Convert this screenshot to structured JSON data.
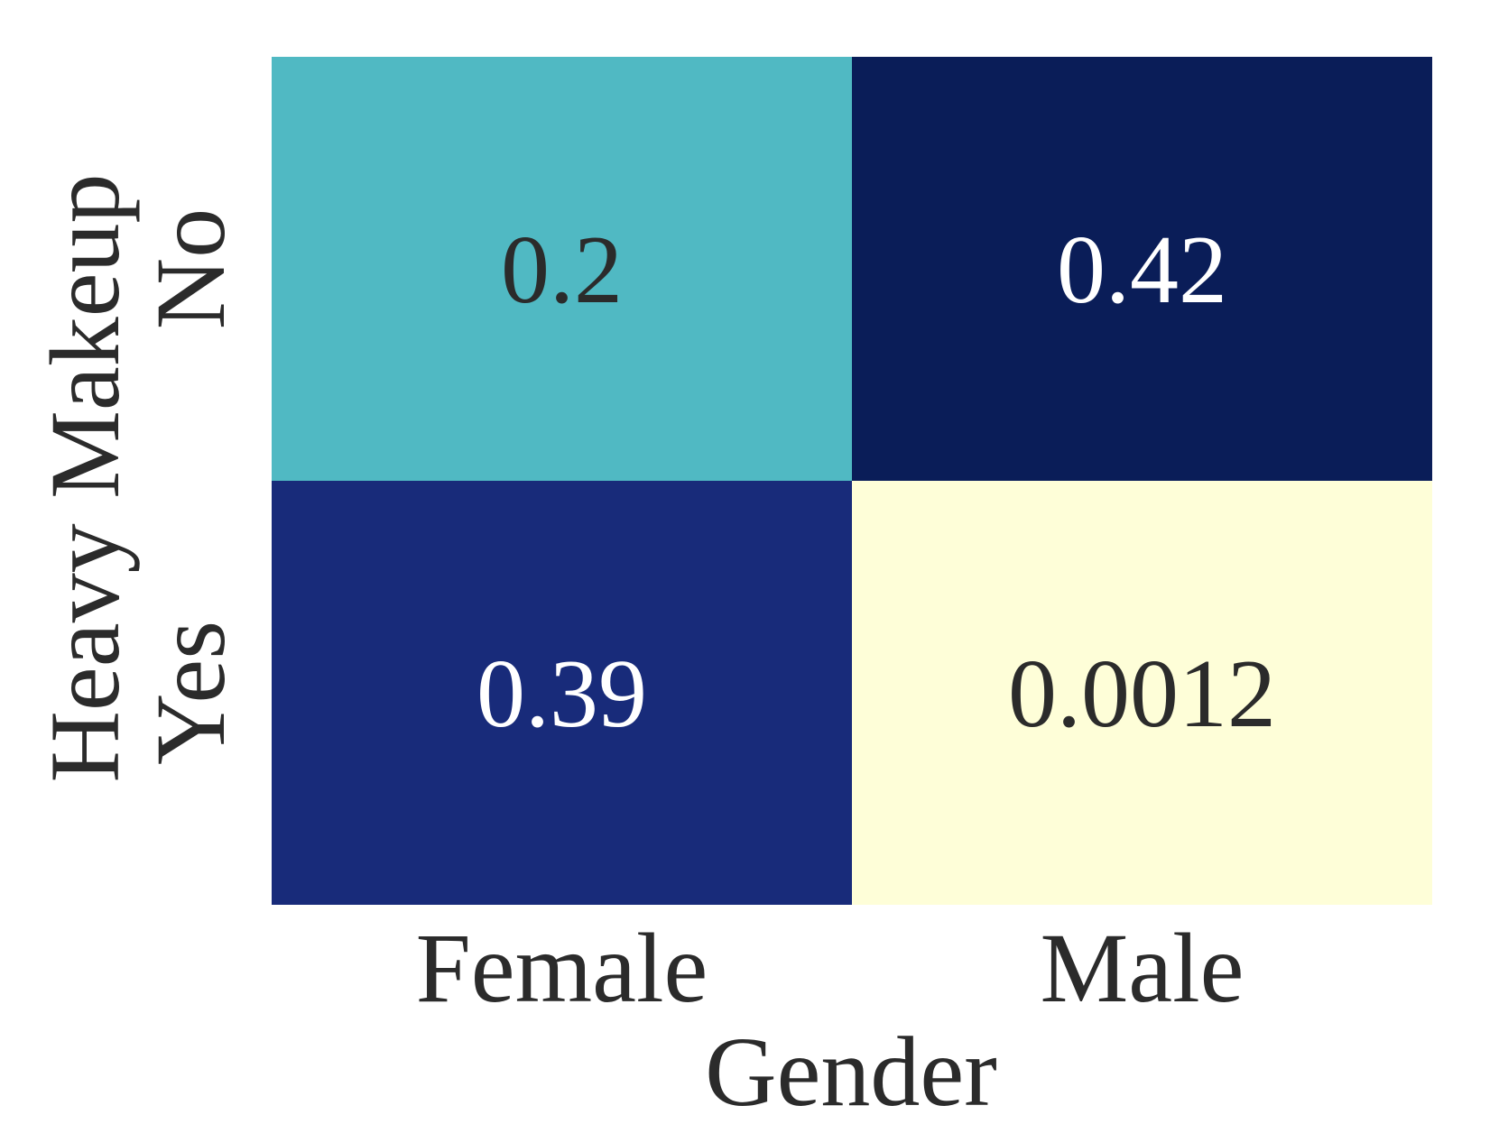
{
  "chart_data": {
    "type": "heatmap",
    "title": "",
    "xlabel": "Gender",
    "ylabel": "Heavy Makeup",
    "x_categories": [
      "Female",
      "Male"
    ],
    "y_categories": [
      "No",
      "Yes"
    ],
    "values": [
      [
        0.2,
        0.42
      ],
      [
        0.39,
        0.0012
      ]
    ],
    "value_labels": [
      [
        "0.2",
        "0.42"
      ],
      [
        "0.39",
        "0.0012"
      ]
    ],
    "cell_colors": [
      [
        "#50b9c3",
        "#0a1d58"
      ],
      [
        "#182b7a",
        "#fefed8"
      ]
    ],
    "label_colors": [
      [
        "#2b2b2b",
        "#ffffff"
      ],
      [
        "#ffffff",
        "#2b2b2b"
      ]
    ],
    "colormap": "YlGnBu",
    "colorbar": false,
    "grid": false
  }
}
